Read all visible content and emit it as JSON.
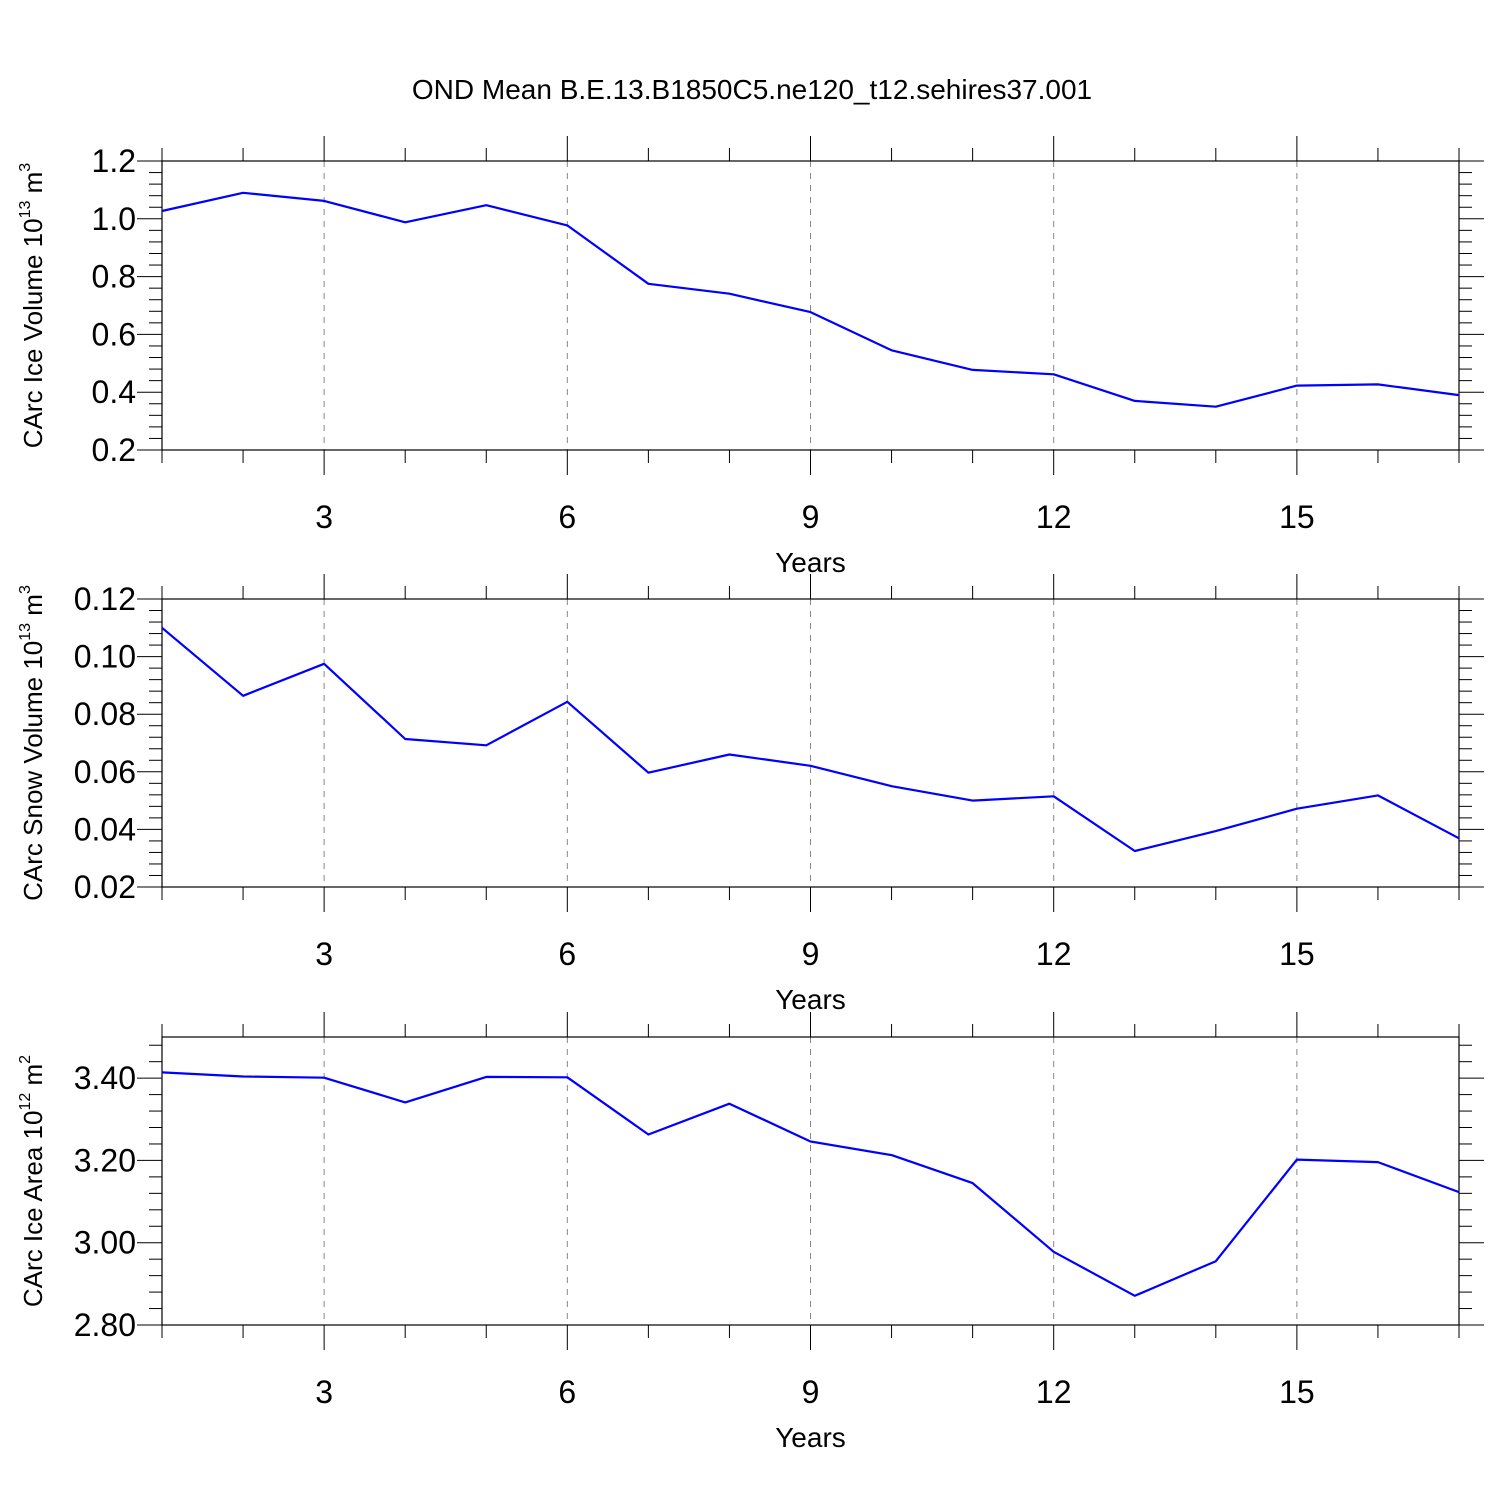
{
  "title": "OND Mean B.E.13.B1850C5.ne120_t12.sehires37.001",
  "colors": {
    "series": "#0000ff",
    "frame": "#000000",
    "grid": "#888888"
  },
  "chart_data": [
    {
      "type": "line",
      "ylabel": {
        "main": "CArc Ice Volume 10",
        "exp": "13",
        "unit": " m",
        "unit_exp": "3"
      },
      "xlabel": "Years",
      "xlim": [
        1,
        17
      ],
      "xticks": [
        3,
        6,
        9,
        12,
        15
      ],
      "ylim": [
        0.2,
        1.2
      ],
      "yticks": [
        0.2,
        0.4,
        0.6,
        0.8,
        1.0,
        1.2
      ],
      "ytick_labels": [
        "0.2",
        "0.4",
        "0.6",
        "0.8",
        "1.0",
        "1.2"
      ],
      "grid": "vertical dashed at major x ticks",
      "series": [
        {
          "name": "Ice Volume",
          "x": [
            1,
            2,
            3,
            4,
            5,
            6,
            7,
            8,
            9,
            10,
            11,
            12,
            13,
            14,
            15,
            16,
            17
          ],
          "values": [
            1.027,
            1.09,
            1.062,
            0.988,
            1.047,
            0.977,
            0.775,
            0.741,
            0.677,
            0.545,
            0.477,
            0.462,
            0.37,
            0.35,
            0.423,
            0.427,
            0.39
          ]
        }
      ]
    },
    {
      "type": "line",
      "ylabel": {
        "main": "CArc Snow Volume 10",
        "exp": "13",
        "unit": " m",
        "unit_exp": "3"
      },
      "xlabel": "Years",
      "xlim": [
        1,
        17
      ],
      "xticks": [
        3,
        6,
        9,
        12,
        15
      ],
      "ylim": [
        0.02,
        0.12
      ],
      "yticks": [
        0.02,
        0.04,
        0.06,
        0.08,
        0.1,
        0.12
      ],
      "ytick_labels": [
        "0.02",
        "0.04",
        "0.06",
        "0.08",
        "0.10",
        "0.12"
      ],
      "grid": "vertical dashed at major x ticks",
      "series": [
        {
          "name": "Snow Volume",
          "x": [
            1,
            2,
            3,
            4,
            5,
            6,
            7,
            8,
            9,
            10,
            11,
            12,
            13,
            14,
            15,
            16,
            17
          ],
          "values": [
            0.11,
            0.0864,
            0.0975,
            0.0714,
            0.0692,
            0.0843,
            0.0597,
            0.066,
            0.0621,
            0.055,
            0.05,
            0.0515,
            0.0325,
            0.0394,
            0.0472,
            0.0518,
            0.0369
          ]
        }
      ]
    },
    {
      "type": "line",
      "ylabel": {
        "main": "CArc Ice Area 10",
        "exp": "12",
        "unit": " m",
        "unit_exp": "2"
      },
      "xlabel": "Years",
      "xlim": [
        1,
        17
      ],
      "xticks": [
        3,
        6,
        9,
        12,
        15
      ],
      "ylim": [
        2.8,
        3.5
      ],
      "yticks": [
        2.8,
        3.0,
        3.2,
        3.4
      ],
      "ytick_labels": [
        "2.80",
        "3.00",
        "3.20",
        "3.40"
      ],
      "grid": "vertical dashed at major x ticks",
      "series": [
        {
          "name": "Ice Area",
          "x": [
            1,
            2,
            3,
            4,
            5,
            6,
            7,
            8,
            9,
            10,
            11,
            12,
            13,
            14,
            15,
            16,
            17
          ],
          "values": [
            3.414,
            3.404,
            3.401,
            3.341,
            3.403,
            3.402,
            3.263,
            3.338,
            3.246,
            3.213,
            3.145,
            2.978,
            2.871,
            2.955,
            3.202,
            3.196,
            3.123
          ]
        }
      ]
    }
  ]
}
